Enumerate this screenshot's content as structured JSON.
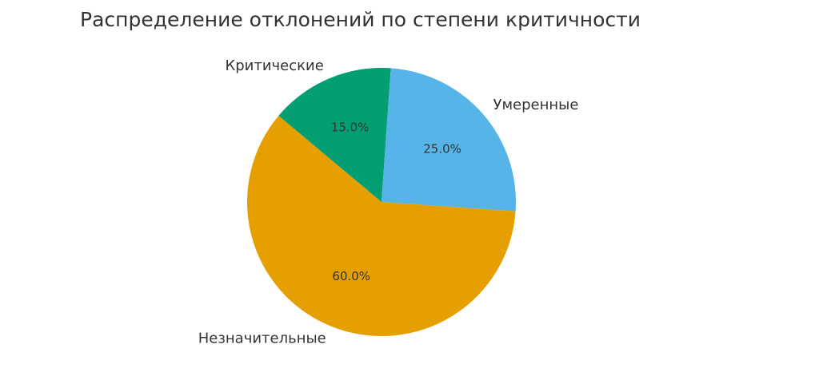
{
  "chart_data": {
    "type": "pie",
    "title": "Распределение отклонений по степени критичности",
    "categories": [
      "Критические",
      "Умеренные",
      "Незначительные"
    ],
    "values": [
      15,
      25,
      60
    ],
    "value_labels": [
      "15.0%",
      "25.0%",
      "60.0%"
    ],
    "colors": [
      "#049e73",
      "#56b4e9",
      "#e69f00"
    ]
  }
}
